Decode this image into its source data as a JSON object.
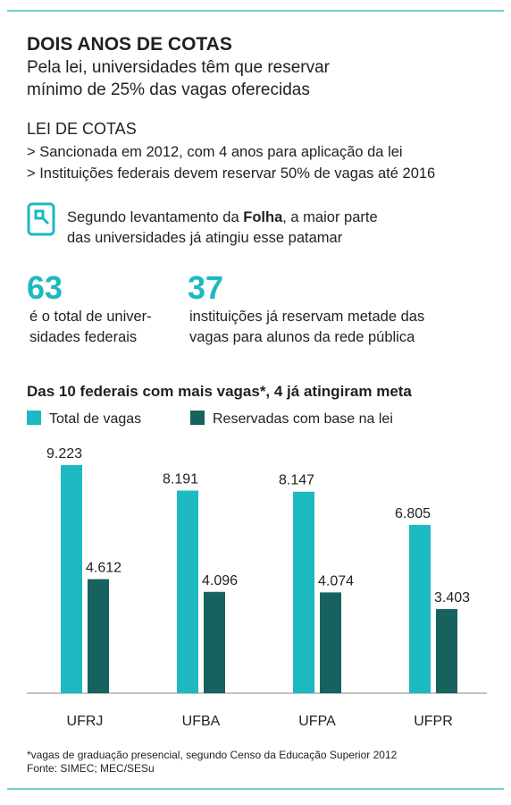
{
  "header": {
    "title": "DOIS ANOS DE COTAS",
    "subtitle": [
      "Pela lei, universidades têm que reservar",
      "mínimo de 25% das vagas oferecidas"
    ]
  },
  "law": {
    "title": "LEI DE COTAS",
    "bullets": [
      "> Sancionada em 2012, com 4 anos para aplicação da lei",
      "> Instituições federais devem reservar 50% de vagas até 2016"
    ]
  },
  "note": {
    "before": "Segundo levantamento da ",
    "bold": "Folha",
    "after": ", a maior parte",
    "line2": "das universidades já atingiu esse patamar"
  },
  "stats": [
    {
      "number": "63",
      "lines": [
        "é o total de univer-",
        "sidades federais"
      ]
    },
    {
      "number": "37",
      "lines": [
        "instituições já reservam metade das",
        "vagas para alunos da rede pública"
      ]
    }
  ],
  "chart_data": {
    "type": "bar",
    "title": "Das 10 federais com mais vagas*, 4 já atingiram meta",
    "categories": [
      "UFRJ",
      "UFBA",
      "UFPA",
      "UFPR"
    ],
    "series": [
      {
        "name": "Total de vagas",
        "color": "#1cb9c1",
        "values": [
          9223,
          8191,
          8147,
          6805
        ],
        "value_labels": [
          "9.223",
          "8.191",
          "8.147",
          "6.805"
        ]
      },
      {
        "name": "Reservadas com base na lei",
        "color": "#17625f",
        "values": [
          4612,
          4096,
          4074,
          3403
        ],
        "value_labels": [
          "4.612",
          "4.096",
          "4.074",
          "3.403"
        ]
      }
    ]
  },
  "footer": {
    "footnote": "*vagas de graduação presencial, segundo Censo da Educação Superior 2012",
    "source": "Fonte: SIMEC; MEC/SESu"
  }
}
